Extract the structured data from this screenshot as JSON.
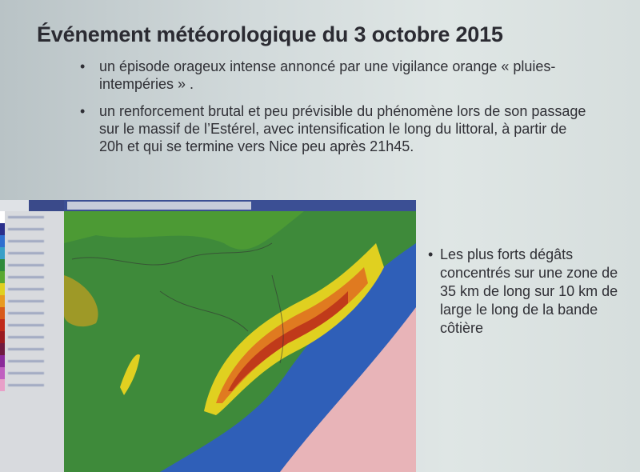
{
  "slide": {
    "title": "Événement météorologique du 3 octobre 2015",
    "bullets": [
      "un épisode orageux intense annoncé par une vigilance orange « pluies-intempéries » .",
      "un renforcement brutal et peu prévisible du phénomène  lors de son passage sur le massif de l’Estérel, avec intensification le long du littoral,  à partir de 20h et qui se termine vers Nice peu après 21h45."
    ],
    "side_bullets": [
      "Les plus forts dégâts concentrés sur une zone de 35 km de long sur 10 km de large le long de la bande côtière"
    ]
  },
  "radar_legend": {
    "colors": [
      "#ffffff",
      "#2a2f8c",
      "#2f6fd0",
      "#38a0c8",
      "#2f8a3a",
      "#5aa830",
      "#e0d020",
      "#e89a20",
      "#d85a1a",
      "#c02a1a",
      "#9a1a20",
      "#701a40",
      "#8a2a9a",
      "#c060c0",
      "#e8a0c8"
    ]
  },
  "radar_map": {
    "colors": {
      "land": "#3e8a3a",
      "light_rain": "#2f6ac8",
      "moderate": "#2aa0c0",
      "heavy": "#e0d020",
      "very_heavy": "#e07a20",
      "extreme": "#c03a1a",
      "sea": "#e8b4b8"
    }
  }
}
